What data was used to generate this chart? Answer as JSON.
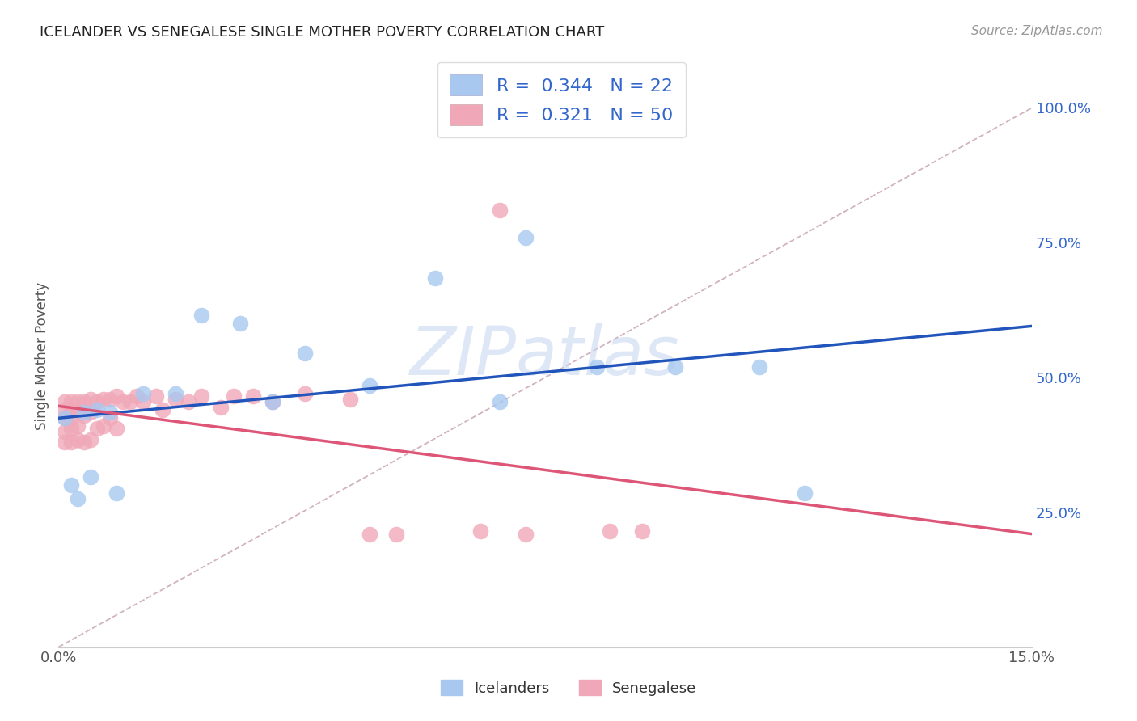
{
  "title": "ICELANDER VS SENEGALESE SINGLE MOTHER POVERTY CORRELATION CHART",
  "source": "Source: ZipAtlas.com",
  "ylabel_label": "Single Mother Poverty",
  "xlim": [
    0.0,
    0.15
  ],
  "ylim": [
    0.0,
    1.08
  ],
  "xticks": [
    0.0,
    0.03,
    0.06,
    0.09,
    0.12,
    0.15
  ],
  "xtick_labels": [
    "0.0%",
    "",
    "",
    "",
    "",
    "15.0%"
  ],
  "ytick_labels": [
    "25.0%",
    "50.0%",
    "75.0%",
    "100.0%"
  ],
  "yticks": [
    0.25,
    0.5,
    0.75,
    1.0
  ],
  "icelanders_color": "#a8c8f0",
  "senegalese_color": "#f0a8b8",
  "icelanders_line_color": "#2255bb",
  "senegalese_line_color": "#dd5577",
  "diagonal_color": "#ccaabb",
  "R_icelanders": 0.344,
  "N_icelanders": 22,
  "R_senegalese": 0.321,
  "N_senegalese": 50,
  "icelanders_x": [
    0.001,
    0.002,
    0.003,
    0.004,
    0.005,
    0.006,
    0.008,
    0.009,
    0.013,
    0.018,
    0.022,
    0.028,
    0.033,
    0.038,
    0.048,
    0.058,
    0.068,
    0.072,
    0.083,
    0.095,
    0.108,
    0.115
  ],
  "icelanders_y": [
    0.425,
    0.3,
    0.275,
    0.435,
    0.315,
    0.44,
    0.435,
    0.285,
    0.47,
    0.47,
    0.615,
    0.6,
    0.455,
    0.545,
    0.485,
    0.685,
    0.455,
    0.76,
    0.52,
    0.52,
    0.52,
    0.285
  ],
  "senegalese_x": [
    0.001,
    0.001,
    0.001,
    0.001,
    0.001,
    0.002,
    0.002,
    0.002,
    0.002,
    0.002,
    0.003,
    0.003,
    0.003,
    0.003,
    0.004,
    0.004,
    0.004,
    0.005,
    0.005,
    0.005,
    0.006,
    0.006,
    0.007,
    0.007,
    0.008,
    0.008,
    0.009,
    0.009,
    0.01,
    0.011,
    0.012,
    0.013,
    0.015,
    0.016,
    0.018,
    0.02,
    0.022,
    0.025,
    0.027,
    0.03,
    0.033,
    0.038,
    0.045,
    0.048,
    0.052,
    0.065,
    0.068,
    0.072,
    0.085,
    0.09
  ],
  "senegalese_y": [
    0.455,
    0.44,
    0.425,
    0.4,
    0.38,
    0.455,
    0.44,
    0.425,
    0.405,
    0.38,
    0.455,
    0.44,
    0.41,
    0.385,
    0.455,
    0.43,
    0.38,
    0.46,
    0.435,
    0.385,
    0.455,
    0.405,
    0.46,
    0.41,
    0.46,
    0.425,
    0.465,
    0.405,
    0.455,
    0.455,
    0.465,
    0.455,
    0.465,
    0.44,
    0.46,
    0.455,
    0.465,
    0.445,
    0.465,
    0.465,
    0.455,
    0.47,
    0.46,
    0.21,
    0.21,
    0.215,
    0.81,
    0.21,
    0.215,
    0.215
  ],
  "background_color": "#ffffff",
  "grid_color": "#d8d8e8",
  "watermark": "ZIPatlas",
  "watermark_color": "#c8d8f0"
}
